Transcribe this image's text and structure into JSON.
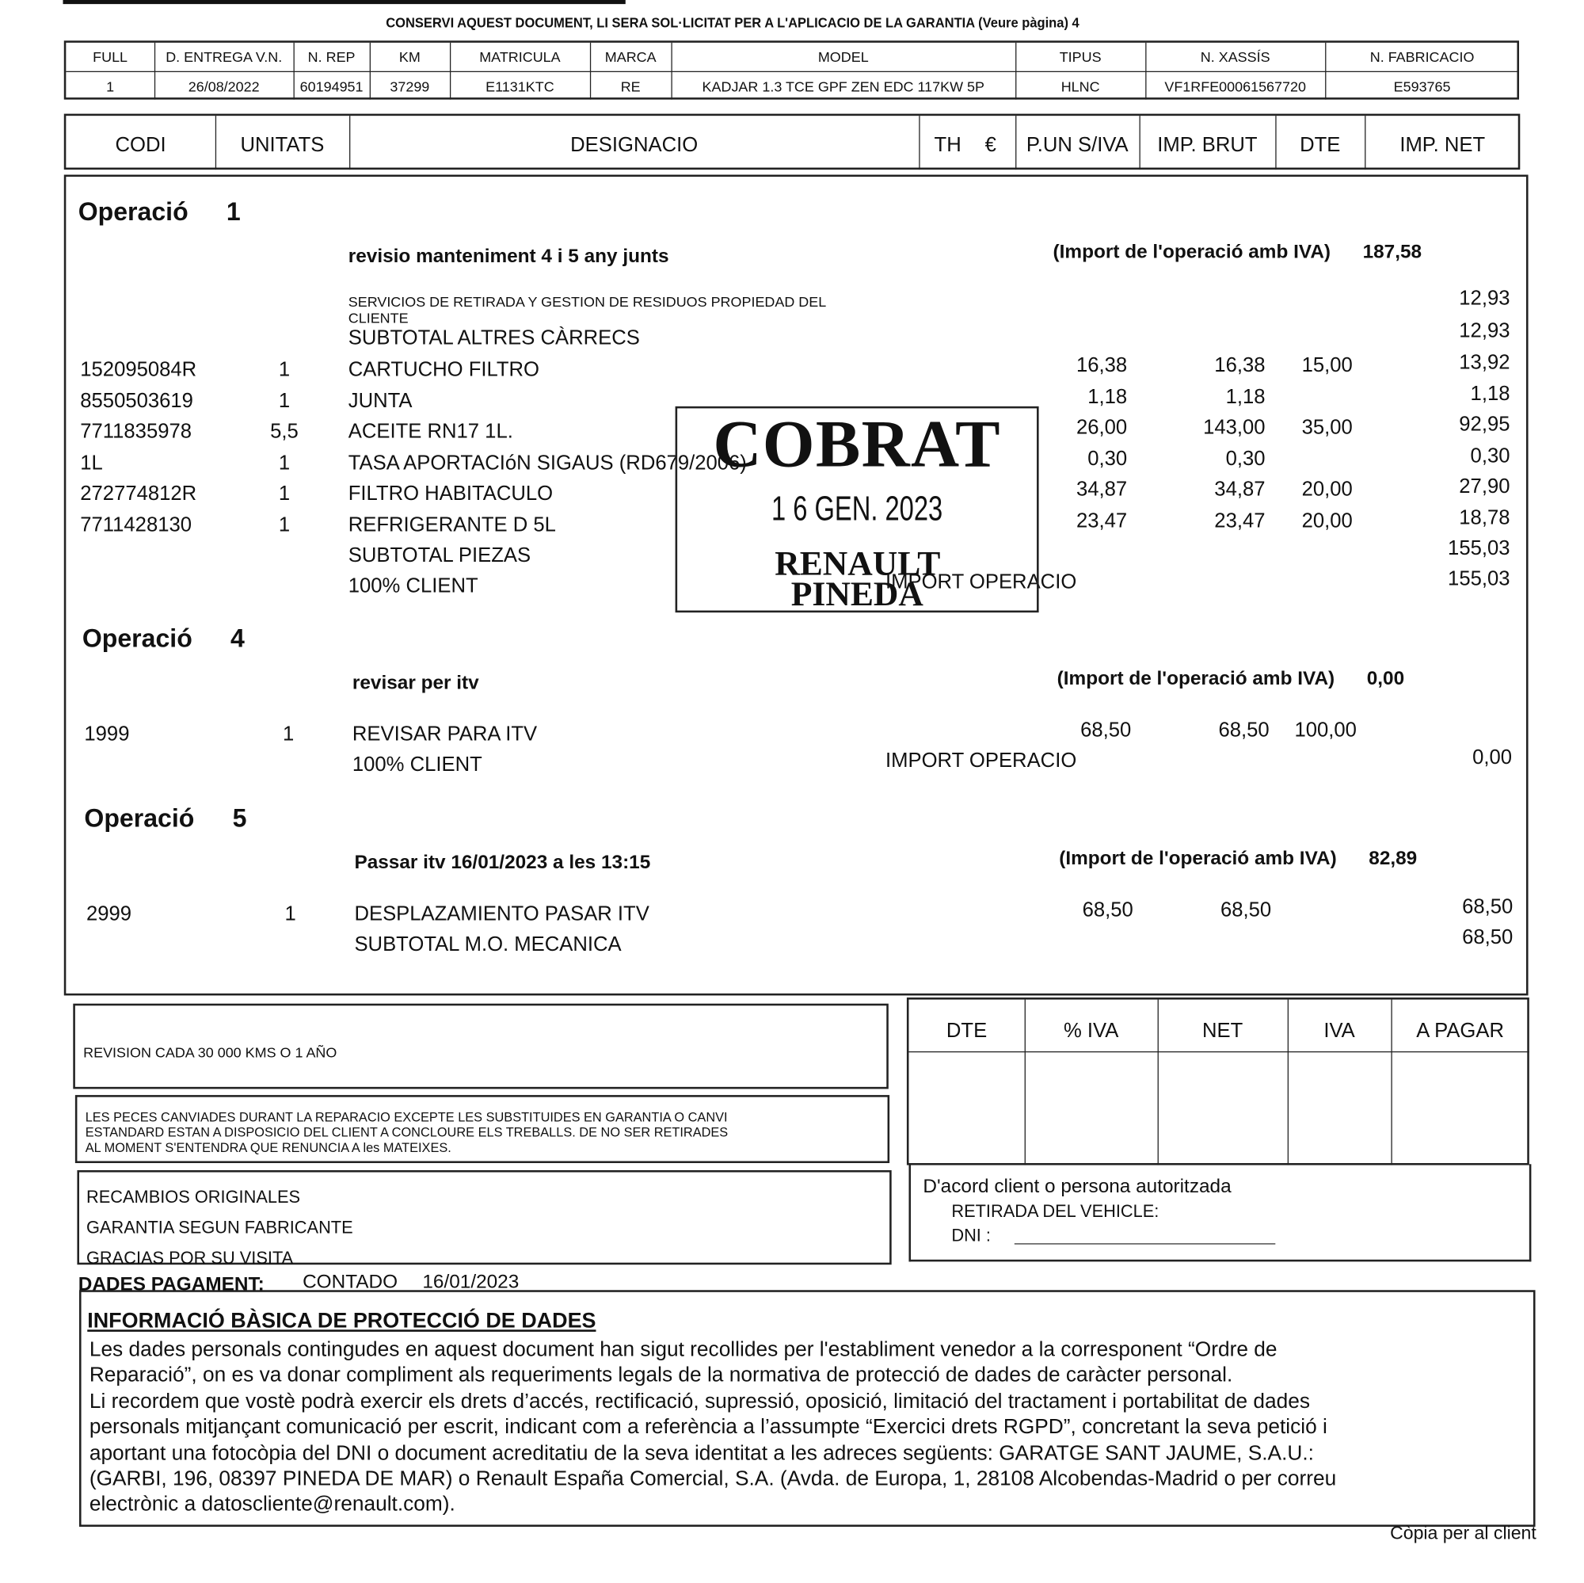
{
  "notice": "CONSERVI AQUEST DOCUMENT, LI SERA SOL·LICITAT PER A L'APLICACIO DE LA GARANTIA (Veure pàgina)   4",
  "vehicle": {
    "headers": [
      "FULL",
      "D. ENTREGA V.N.",
      "N. REP",
      "KM",
      "MATRICULA",
      "MARCA",
      "MODEL",
      "TIPUS",
      "N. XASSÍS",
      "N. FABRICACIO"
    ],
    "values": [
      "1",
      "26/08/2022",
      "60194951",
      "37299",
      "E1131KTC",
      "RE",
      "KADJAR 1.3 TCE GPF ZEN EDC 117KW 5P",
      "HLNC",
      "VF1RFE00061567720",
      "E593765"
    ]
  },
  "columns": [
    "CODI",
    "UNITATS",
    "DESIGNACIO",
    "TH",
    "€",
    "P.UN S/IVA",
    "IMP. BRUT",
    "DTE",
    "IMP. NET"
  ],
  "operations": [
    {
      "label": "Operació",
      "number": "1",
      "title": "revisio manteniment 4 i 5 any junts",
      "import_label": "(Import de l'operació amb IVA)",
      "import_value": "187,58",
      "lines": [
        {
          "desc": "SERVICIOS DE RETIRADA Y GESTION DE RESIDUOS PROPIEDAD DEL CLIENTE",
          "net": "12,93",
          "small": true
        },
        {
          "desc": "SUBTOTAL   ALTRES CÀRRECS",
          "net": "12,93"
        },
        {
          "code": "152095084R",
          "units": "1",
          "desc": "CARTUCHO FILTRO",
          "pun": "16,38",
          "brut": "16,38",
          "dte": "15,00",
          "net": "13,92"
        },
        {
          "code": "8550503619",
          "units": "1",
          "desc": "JUNTA",
          "pun": "1,18",
          "brut": "1,18",
          "net": "1,18"
        },
        {
          "code": "7711835978",
          "units": "5,5",
          "desc": "ACEITE RN17 1L.",
          "pun": "26,00",
          "brut": "143,00",
          "dte": "35,00",
          "net": "92,95"
        },
        {
          "code": "1L",
          "units": "1",
          "desc": "TASA APORTACIóN SIGAUS (RD679/2006)",
          "pun": "0,30",
          "brut": "0,30",
          "net": "0,30"
        },
        {
          "code": "272774812R",
          "units": "1",
          "desc": "FILTRO HABITACULO",
          "pun": "34,87",
          "brut": "34,87",
          "dte": "20,00",
          "net": "27,90"
        },
        {
          "code": "7711428130",
          "units": "1",
          "desc": "REFRIGERANTE D 5L",
          "pun": "23,47",
          "brut": "23,47",
          "dte": "20,00",
          "net": "18,78"
        },
        {
          "desc": "SUBTOTAL   PIEZAS",
          "net": "155,03"
        },
        {
          "desc": "100% CLIENT",
          "extra": "IMPORT OPERACIO",
          "net": "155,03"
        }
      ]
    },
    {
      "label": "Operació",
      "number": "4",
      "title": "revisar per itv",
      "import_label": "(Import de l'operació amb IVA)",
      "import_value": "0,00",
      "lines": [
        {
          "code": "1999",
          "units": "1",
          "desc": "REVISAR PARA ITV",
          "pun": "68,50",
          "brut": "68,50",
          "dte": "100,00"
        },
        {
          "desc": "100% CLIENT",
          "extra": "IMPORT OPERACIO",
          "net": "0,00"
        }
      ]
    },
    {
      "label": "Operació",
      "number": "5",
      "title": "Passar itv 16/01/2023 a les 13:15",
      "import_label": "(Import de l'operació amb IVA)",
      "import_value": "82,89",
      "lines": [
        {
          "code": "2999",
          "units": "1",
          "desc": "DESPLAZAMIENTO PASAR ITV",
          "pun": "68,50",
          "brut": "68,50",
          "net": "68,50"
        },
        {
          "desc": "SUBTOTAL   M.O. MECANICA",
          "net": "68,50"
        }
      ]
    }
  ],
  "stamp": {
    "word": "COBRAT",
    "date": "1 6  GEN.  2023",
    "line1": "RENAULT",
    "line2": "PINEDA"
  },
  "notes": {
    "revision": "REVISION CADA 30 000 KMS O 1 AÑO",
    "parts": [
      "LES PECES CANVIADES DURANT LA REPARACIO EXCEPTE LES SUBSTITUIDES EN GARANTIA O CANVI",
      "ESTANDARD ESTAN A DISPOSICIO DEL CLIENT A CONCLOURE ELS TREBALLS. DE NO SER RETIRADES",
      "AL MOMENT S'ENTENDRA QUE RENUNCIA A les MATEIXES."
    ],
    "footer": [
      "RECAMBIOS ORIGINALES",
      "GARANTIA SEGUN FABRICANTE",
      "GRACIAS POR SU VISITA"
    ]
  },
  "totals": {
    "headers": [
      "DTE",
      "% IVA",
      "NET",
      "IVA",
      "A PAGAR"
    ]
  },
  "signature": {
    "line1": "D'acord client o persona autoritzada",
    "line2": "RETIRADA DEL VEHICLE:",
    "dni_label": "DNI :"
  },
  "payment": {
    "label": "DADES PAGAMENT:",
    "method": "CONTADO",
    "date": "16/01/2023"
  },
  "privacy": {
    "title": "INFORMACIÓ BÀSICA DE PROTECCIÓ DE DADES",
    "lines": [
      "Les dades personals contingudes en aquest document han sigut recollides per l'establiment venedor a la corresponent “Ordre de",
      "Reparació”, on es va donar compliment als requeriments legals de la normativa de protecció de dades de caràcter personal.",
      "Li recordem que vostè podrà exercir els drets d’accés, rectificació, supressió, oposició, limitació del tractament i portabilitat de dades",
      "personals mitjançant comunicació per escrit, indicant com a referència a l’assumpte “Exercici drets RGPD”, concretant la seva petició i",
      "aportant una fotocòpia del DNI o document acreditatiu de la seva identitat a les adreces següents: GARATGE SANT JAUME, S.A.U.:",
      "(GARBI, 196, 08397 PINEDA DE MAR) o Renault España Comercial, S.A. (Avda. de Europa, 1, 28108 Alcobendas-Madrid o per correu",
      "electrònic a datoscliente@renault.com)."
    ]
  },
  "copy_label": "Còpia per al client"
}
